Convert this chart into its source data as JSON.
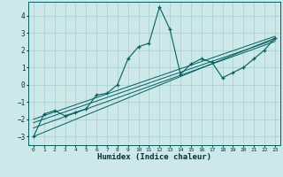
{
  "xlabel": "Humidex (Indice chaleur)",
  "ylabel": "",
  "bg_color": "#cce8e8",
  "grid_color": "#aacece",
  "line_color": "#006060",
  "xlim": [
    -0.5,
    23.5
  ],
  "ylim": [
    -3.5,
    4.8
  ],
  "xticks": [
    0,
    1,
    2,
    3,
    4,
    5,
    6,
    7,
    8,
    9,
    10,
    11,
    12,
    13,
    14,
    15,
    16,
    17,
    18,
    19,
    20,
    21,
    22,
    23
  ],
  "yticks": [
    -3,
    -2,
    -1,
    0,
    1,
    2,
    3,
    4
  ],
  "series": [
    [
      0,
      -3.0
    ],
    [
      1,
      -1.7
    ],
    [
      2,
      -1.5
    ],
    [
      3,
      -1.8
    ],
    [
      4,
      -1.6
    ],
    [
      5,
      -1.4
    ],
    [
      6,
      -0.6
    ],
    [
      7,
      -0.5
    ],
    [
      8,
      0.0
    ],
    [
      9,
      1.5
    ],
    [
      10,
      2.2
    ],
    [
      11,
      2.4
    ],
    [
      12,
      4.5
    ],
    [
      13,
      3.2
    ],
    [
      14,
      0.6
    ],
    [
      15,
      1.2
    ],
    [
      16,
      1.5
    ],
    [
      17,
      1.3
    ],
    [
      18,
      0.4
    ],
    [
      19,
      0.7
    ],
    [
      20,
      1.0
    ],
    [
      21,
      1.5
    ],
    [
      22,
      2.0
    ],
    [
      23,
      2.7
    ]
  ],
  "straight_lines": [
    [
      [
        0,
        -3.0
      ],
      [
        23,
        2.7
      ]
    ],
    [
      [
        0,
        -2.5
      ],
      [
        23,
        2.5
      ]
    ],
    [
      [
        0,
        -2.2
      ],
      [
        23,
        2.6
      ]
    ],
    [
      [
        0,
        -2.0
      ],
      [
        23,
        2.8
      ]
    ]
  ]
}
